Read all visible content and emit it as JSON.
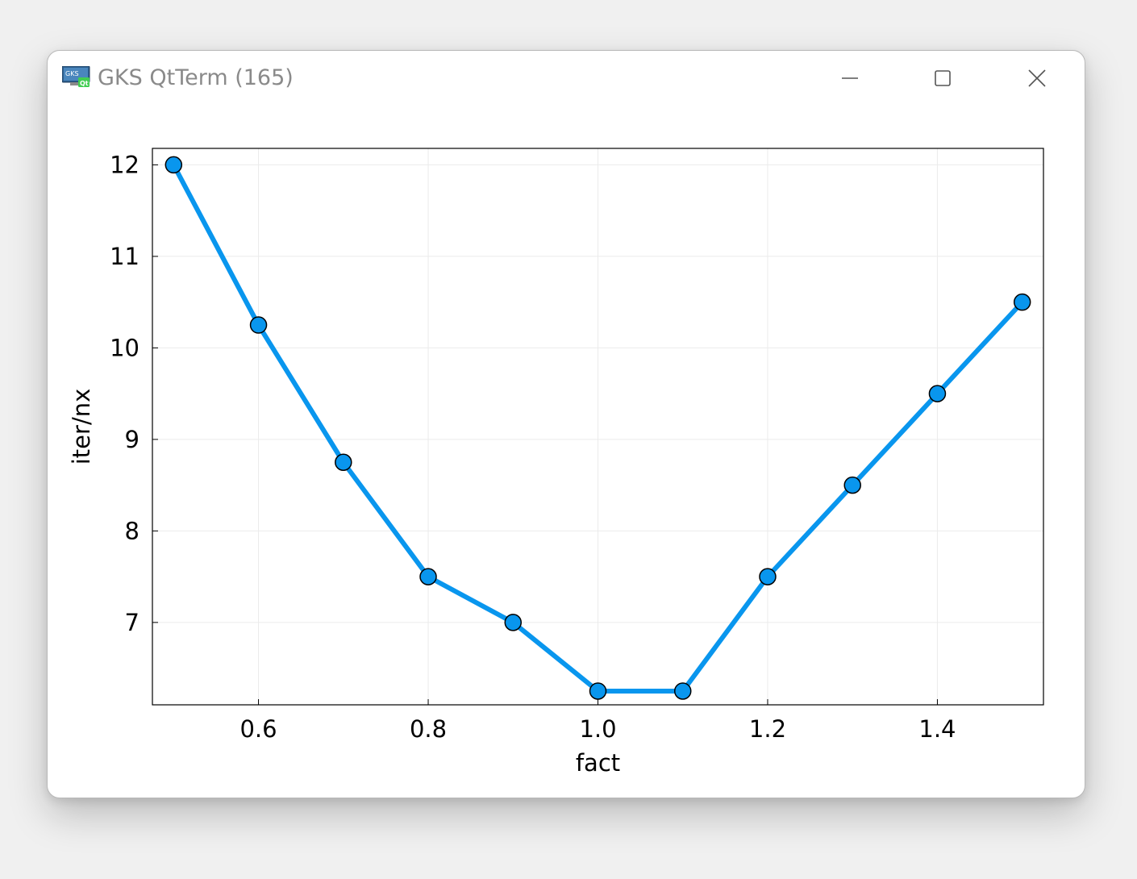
{
  "window": {
    "title": "GKS QtTerm (165)",
    "icon_text_top": "GKS",
    "icon_text_badge": "Qt",
    "controls": [
      "minimize-icon",
      "maximize-icon",
      "close-icon"
    ]
  },
  "colors": {
    "series": "#0996ee",
    "marker_edge": "#000000",
    "grid": "#ebebeb",
    "frame": "#000000",
    "title_text": "#8a8a8a"
  },
  "chart_data": {
    "type": "line",
    "title": "",
    "xlabel": "fact",
    "ylabel": "iter/nx",
    "xlim": [
      0.475,
      1.525
    ],
    "ylim": [
      6.1,
      12.18
    ],
    "xticks": [
      0.6,
      0.8,
      1.0,
      1.2,
      1.4
    ],
    "xtick_labels": [
      "0.6",
      "0.8",
      "1.0",
      "1.2",
      "1.4"
    ],
    "yticks": [
      7,
      8,
      9,
      10,
      11,
      12
    ],
    "ytick_labels": [
      "7",
      "8",
      "9",
      "10",
      "11",
      "12"
    ],
    "grid": true,
    "legend": false,
    "series": [
      {
        "markers": "circle",
        "x": [
          0.5,
          0.6,
          0.7,
          0.8,
          0.9,
          1.0,
          1.1,
          1.2,
          1.3,
          1.4,
          1.5
        ],
        "y": [
          12.0,
          10.25,
          8.75,
          7.5,
          7.0,
          6.25,
          6.25,
          7.5,
          8.5,
          9.5,
          10.5
        ]
      }
    ]
  }
}
